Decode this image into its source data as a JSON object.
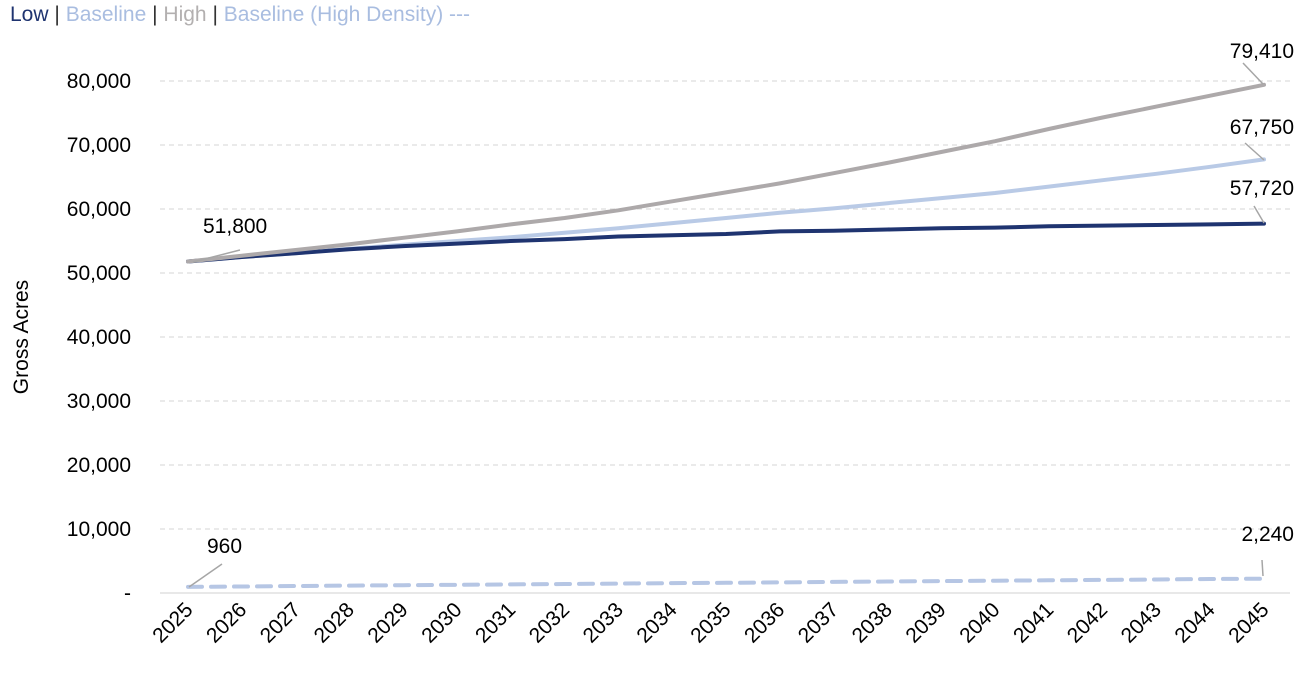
{
  "legend": {
    "items": [
      {
        "label": "Low",
        "color": "#1f3470"
      },
      {
        "label": "Baseline",
        "color": "#a9bde0"
      },
      {
        "label": "High",
        "color": "#b3b0b0"
      },
      {
        "label": "Baseline (High Density) ---",
        "color": "#a9bde0"
      }
    ],
    "separator": "|"
  },
  "chart_data": {
    "type": "line",
    "ylabel": "Gross Acres",
    "xlabel": "",
    "x": [
      "2025",
      "2026",
      "2027",
      "2028",
      "2029",
      "2030",
      "2031",
      "2032",
      "2033",
      "2034",
      "2035",
      "2036",
      "2037",
      "2038",
      "2039",
      "2040",
      "2041",
      "2042",
      "2043",
      "2044",
      "2045"
    ],
    "ylim": [
      0,
      80000
    ],
    "yticks": [
      "-",
      "10,000",
      "20,000",
      "30,000",
      "40,000",
      "50,000",
      "60,000",
      "70,000",
      "80,000"
    ],
    "grid": true,
    "legend_position": "top-left",
    "series": [
      {
        "name": "Low",
        "color": "#1f3470",
        "dashed": false,
        "values": [
          51800,
          52500,
          53100,
          53700,
          54200,
          54600,
          55000,
          55300,
          55700,
          55900,
          56100,
          56500,
          56600,
          56800,
          57000,
          57100,
          57300,
          57400,
          57500,
          57600,
          57720
        ]
      },
      {
        "name": "Baseline",
        "color": "#b9cae6",
        "dashed": false,
        "values": [
          51800,
          52500,
          53100,
          53800,
          54400,
          55000,
          55600,
          56300,
          57000,
          57800,
          58600,
          59400,
          60100,
          60900,
          61700,
          62500,
          63500,
          64500,
          65500,
          66600,
          67750
        ]
      },
      {
        "name": "High",
        "color": "#ada9aa",
        "dashed": false,
        "values": [
          51800,
          52700,
          53600,
          54500,
          55500,
          56500,
          57600,
          58600,
          59800,
          61200,
          62600,
          64000,
          65600,
          67200,
          68900,
          70600,
          72500,
          74300,
          76000,
          77700,
          79410
        ]
      },
      {
        "name": "Baseline (High Density)",
        "color": "#b6c6e4",
        "dashed": true,
        "values": [
          960,
          1020,
          1090,
          1150,
          1220,
          1280,
          1340,
          1410,
          1470,
          1540,
          1600,
          1660,
          1730,
          1790,
          1860,
          1920,
          1980,
          2050,
          2110,
          2180,
          2240
        ]
      }
    ],
    "data_labels": [
      {
        "text": "51,800",
        "series": "Baseline",
        "x": "2025",
        "y": 51800
      },
      {
        "text": "79,410",
        "series": "High",
        "x": "2045",
        "y": 79410
      },
      {
        "text": "67,750",
        "series": "Baseline",
        "x": "2045",
        "y": 67750
      },
      {
        "text": "57,720",
        "series": "Low",
        "x": "2045",
        "y": 57720
      },
      {
        "text": "960",
        "series": "Baseline (High Density)",
        "x": "2025",
        "y": 960
      },
      {
        "text": "2,240",
        "series": "Baseline (High Density)",
        "x": "2045",
        "y": 2240
      }
    ]
  }
}
